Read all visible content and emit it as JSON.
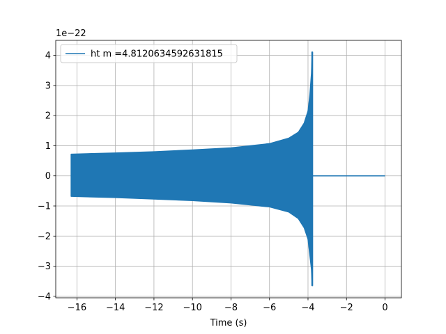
{
  "chart_data": {
    "type": "line",
    "title": "",
    "xlabel": "Time (s)",
    "ylabel": "",
    "offset_text": "1e−22",
    "xlim": [
      -17.1,
      0.85
    ],
    "ylim": [
      -4.05,
      4.5
    ],
    "xticks": [
      -16,
      -14,
      -12,
      -10,
      -8,
      -6,
      -4,
      -2,
      0
    ],
    "xtick_labels": [
      "−16",
      "−14",
      "−12",
      "−10",
      "−8",
      "−6",
      "−4",
      "−2",
      "0"
    ],
    "yticks": [
      -4,
      -3,
      -2,
      -1,
      0,
      1,
      2,
      3,
      4
    ],
    "ytick_labels": [
      "−4",
      "−3",
      "−2",
      "−1",
      "0",
      "1",
      "2",
      "3",
      "4"
    ],
    "grid": true,
    "legend_position": "upper-left",
    "series": [
      {
        "name": "ht m =4.8120634592631815",
        "color": "#1f77b4",
        "signal_start": -16.3,
        "merger_time": -3.78,
        "signal_end": 0.0,
        "envelope_upper": [
          [
            -16.3,
            0.72
          ],
          [
            -14,
            0.76
          ],
          [
            -12,
            0.8
          ],
          [
            -10,
            0.86
          ],
          [
            -8,
            0.93
          ],
          [
            -6,
            1.07
          ],
          [
            -5,
            1.25
          ],
          [
            -4.5,
            1.45
          ],
          [
            -4.2,
            1.75
          ],
          [
            -4.0,
            2.15
          ],
          [
            -3.9,
            2.7
          ],
          [
            -3.82,
            3.4
          ],
          [
            -3.78,
            4.12
          ]
        ],
        "envelope_lower": [
          [
            -16.3,
            -0.68
          ],
          [
            -14,
            -0.72
          ],
          [
            -12,
            -0.77
          ],
          [
            -10,
            -0.82
          ],
          [
            -8,
            -0.9
          ],
          [
            -6,
            -1.03
          ],
          [
            -5,
            -1.2
          ],
          [
            -4.5,
            -1.42
          ],
          [
            -4.2,
            -1.72
          ],
          [
            -4.0,
            -2.1
          ],
          [
            -3.9,
            -2.65
          ],
          [
            -3.82,
            -3.1
          ],
          [
            -3.78,
            -3.65
          ]
        ],
        "post_merger_value": 0.0
      }
    ]
  }
}
